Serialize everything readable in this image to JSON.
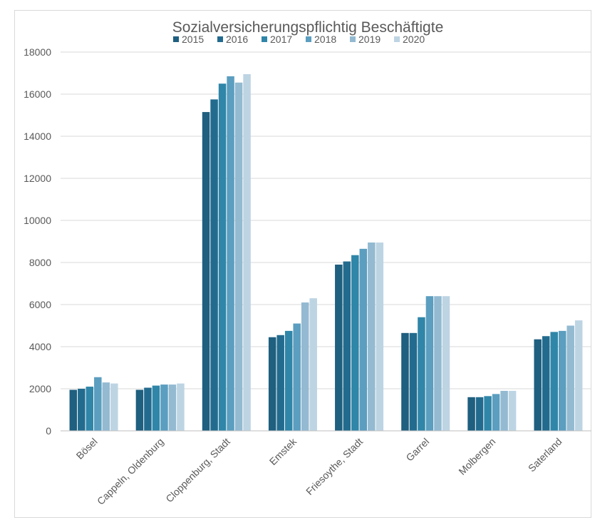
{
  "chart_data": {
    "type": "bar",
    "title": "Sozialversicherungspflichtig Beschäftigte",
    "xlabel": "",
    "ylabel": "",
    "ylim": [
      0,
      18000
    ],
    "yticks": [
      0,
      2000,
      4000,
      6000,
      8000,
      10000,
      12000,
      14000,
      16000,
      18000
    ],
    "grid": true,
    "legend_position": "top",
    "categories": [
      "Bösel",
      "Cappeln, Oldenburg",
      "Cloppenburg, Stadt",
      "Emstek",
      "Friesoythe, Stadt",
      "Garrel",
      "Molbergen",
      "Saterland"
    ],
    "series": [
      {
        "name": "2015",
        "color": "#1f5f7f",
        "values": [
          1950,
          1950,
          15150,
          4450,
          7900,
          4650,
          1600,
          4350
        ]
      },
      {
        "name": "2016",
        "color": "#236b8e",
        "values": [
          2000,
          2050,
          15750,
          4550,
          8050,
          4650,
          1600,
          4500
        ]
      },
      {
        "name": "2017",
        "color": "#2f86a8",
        "values": [
          2100,
          2150,
          16500,
          4750,
          8350,
          5400,
          1650,
          4700
        ]
      },
      {
        "name": "2018",
        "color": "#5b9ebf",
        "values": [
          2550,
          2200,
          16850,
          5100,
          8650,
          6400,
          1750,
          4750
        ]
      },
      {
        "name": "2019",
        "color": "#93bad1",
        "values": [
          2300,
          2200,
          16550,
          6100,
          8950,
          6400,
          1900,
          5000
        ]
      },
      {
        "name": "2020",
        "color": "#bdd4e3",
        "values": [
          2250,
          2250,
          16950,
          6300,
          8950,
          6400,
          1900,
          5250
        ]
      }
    ]
  }
}
